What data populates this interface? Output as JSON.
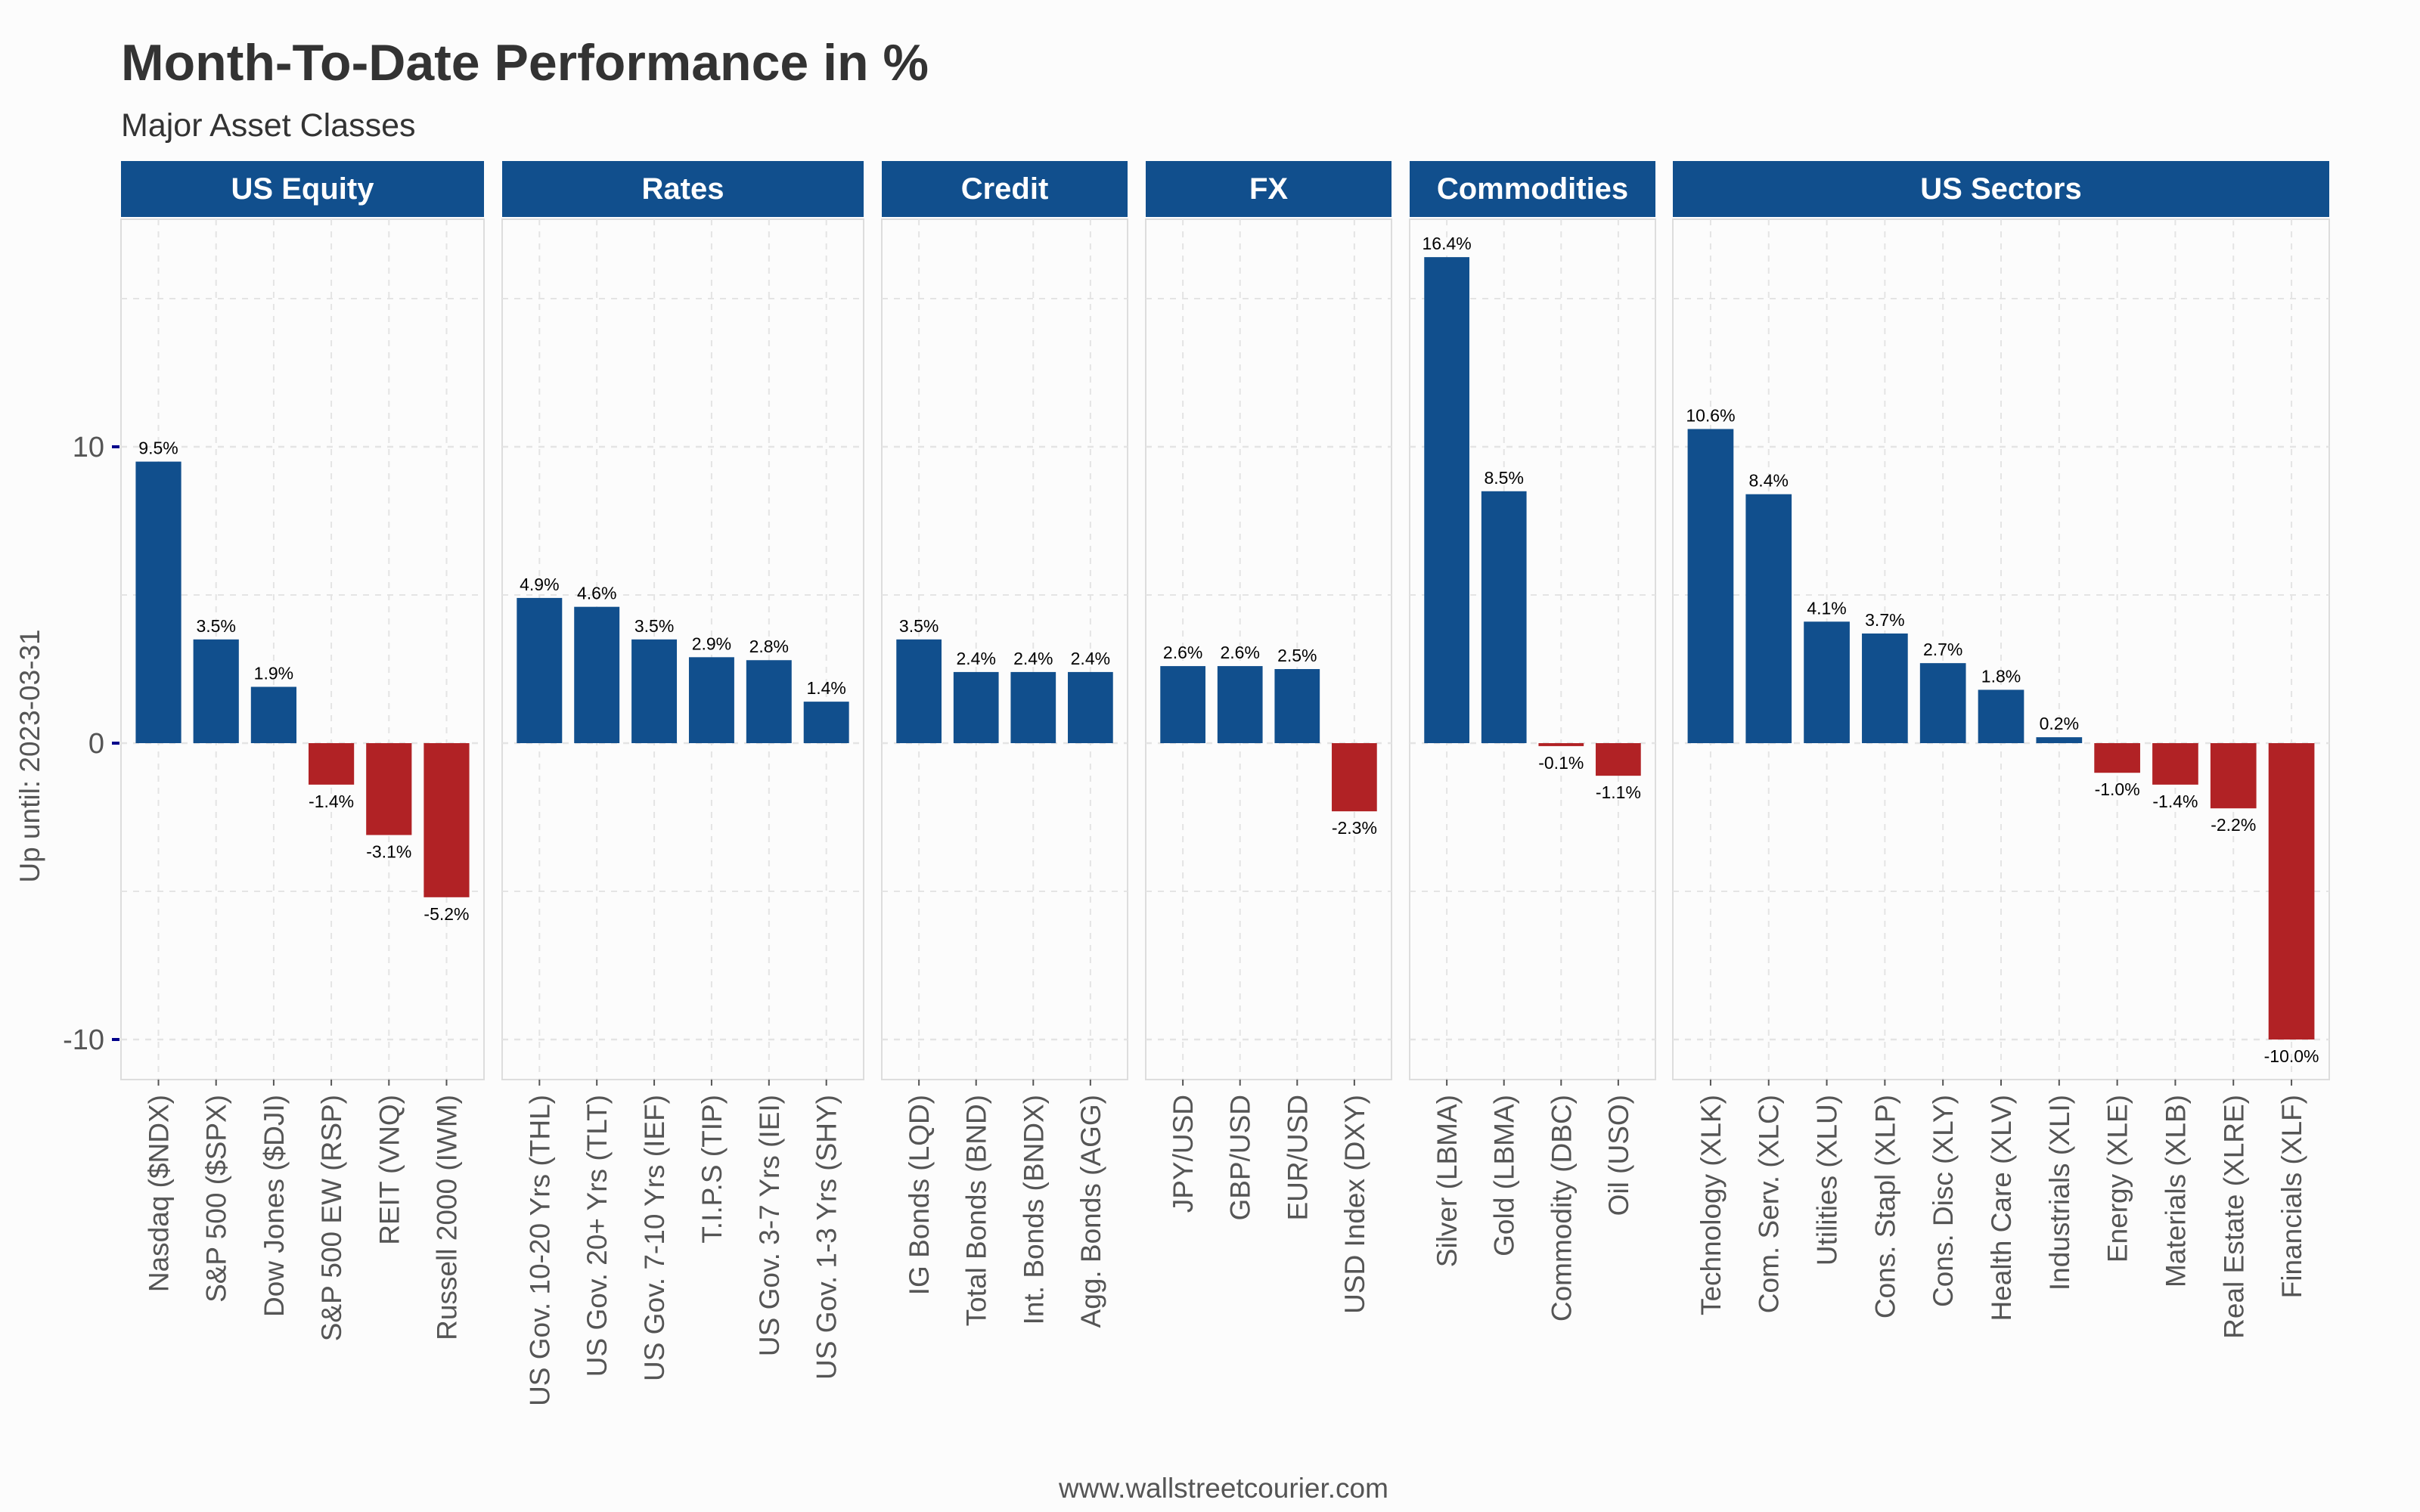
{
  "title": "Month-To-Date Performance in %",
  "subtitle": "Major Asset Classes",
  "footer": "www.wallstreetcourier.com",
  "colors": {
    "positive": "#114F8D",
    "negative": "#B12225",
    "strip": "#114F8D",
    "text": "#333333",
    "grid": "#e4e4e4",
    "axis_tick": "#00008B"
  },
  "chart_data": {
    "type": "bar",
    "ylabel": "Up until: 2023-03-31",
    "ylim": [
      -11.3,
      17.5
    ],
    "yticks": [
      -10,
      0,
      10
    ],
    "grid": true,
    "panels": [
      {
        "name": "US Equity",
        "categories": [
          "Nasdaq ($NDX)",
          "S&P 500 ($SPX)",
          "Dow Jones ($DJI)",
          "S&P 500 EW (RSP)",
          "REIT (VNQ)",
          "Russell 2000 (IWM)"
        ],
        "values": [
          9.5,
          3.5,
          1.9,
          -1.4,
          -3.1,
          -5.2
        ],
        "labels": [
          "9.5%",
          "3.5%",
          "1.9%",
          "-1.4%",
          "-3.1%",
          "-5.2%"
        ]
      },
      {
        "name": "Rates",
        "categories": [
          "US Gov. 10-20 Yrs (THL)",
          "US Gov. 20+ Yrs (TLT)",
          "US Gov. 7-10 Yrs (IEF)",
          "T.I.P.S (TIP)",
          "US Gov. 3-7 Yrs (IEI)",
          "US Gov. 1-3 Yrs (SHY)"
        ],
        "values": [
          4.9,
          4.6,
          3.5,
          2.9,
          2.8,
          1.4
        ],
        "labels": [
          "4.9%",
          "4.6%",
          "3.5%",
          "2.9%",
          "2.8%",
          "1.4%"
        ]
      },
      {
        "name": "Credit",
        "categories": [
          "IG Bonds (LQD)",
          "Total Bonds (BND)",
          "Int. Bonds (BNDX)",
          "Agg. Bonds (AGG)"
        ],
        "values": [
          3.5,
          2.4,
          2.4,
          2.4
        ],
        "labels": [
          "3.5%",
          "2.4%",
          "2.4%",
          "2.4%"
        ]
      },
      {
        "name": "FX",
        "categories": [
          "JPY/USD",
          "GBP/USD",
          "EUR/USD",
          "USD Index (DXY)"
        ],
        "values": [
          2.6,
          2.6,
          2.5,
          -2.3
        ],
        "labels": [
          "2.6%",
          "2.6%",
          "2.5%",
          "-2.3%"
        ]
      },
      {
        "name": "Commodities",
        "categories": [
          "Silver (LBMA)",
          "Gold (LBMA)",
          "Commodity (DBC)",
          "Oil (USO)"
        ],
        "values": [
          16.4,
          8.5,
          -0.1,
          -1.1
        ],
        "labels": [
          "16.4%",
          "8.5%",
          "-0.1%",
          "-1.1%"
        ]
      },
      {
        "name": "US Sectors",
        "categories": [
          "Technology (XLK)",
          "Com. Serv. (XLC)",
          "Utilities (XLU)",
          "Cons. Stapl (XLP)",
          "Cons. Disc (XLY)",
          "Health Care (XLV)",
          "Industrials (XLI)",
          "Energy (XLE)",
          "Materials (XLB)",
          "Real Estate (XLRE)",
          "Financials (XLF)"
        ],
        "values": [
          10.6,
          8.4,
          4.1,
          3.7,
          2.7,
          1.8,
          0.2,
          -1.0,
          -1.4,
          -2.2,
          -10.0
        ],
        "labels": [
          "10.6%",
          "8.4%",
          "4.1%",
          "3.7%",
          "2.7%",
          "1.8%",
          "0.2%",
          "-1.0%",
          "-1.4%",
          "-2.2%",
          "-10.0%"
        ]
      }
    ]
  }
}
